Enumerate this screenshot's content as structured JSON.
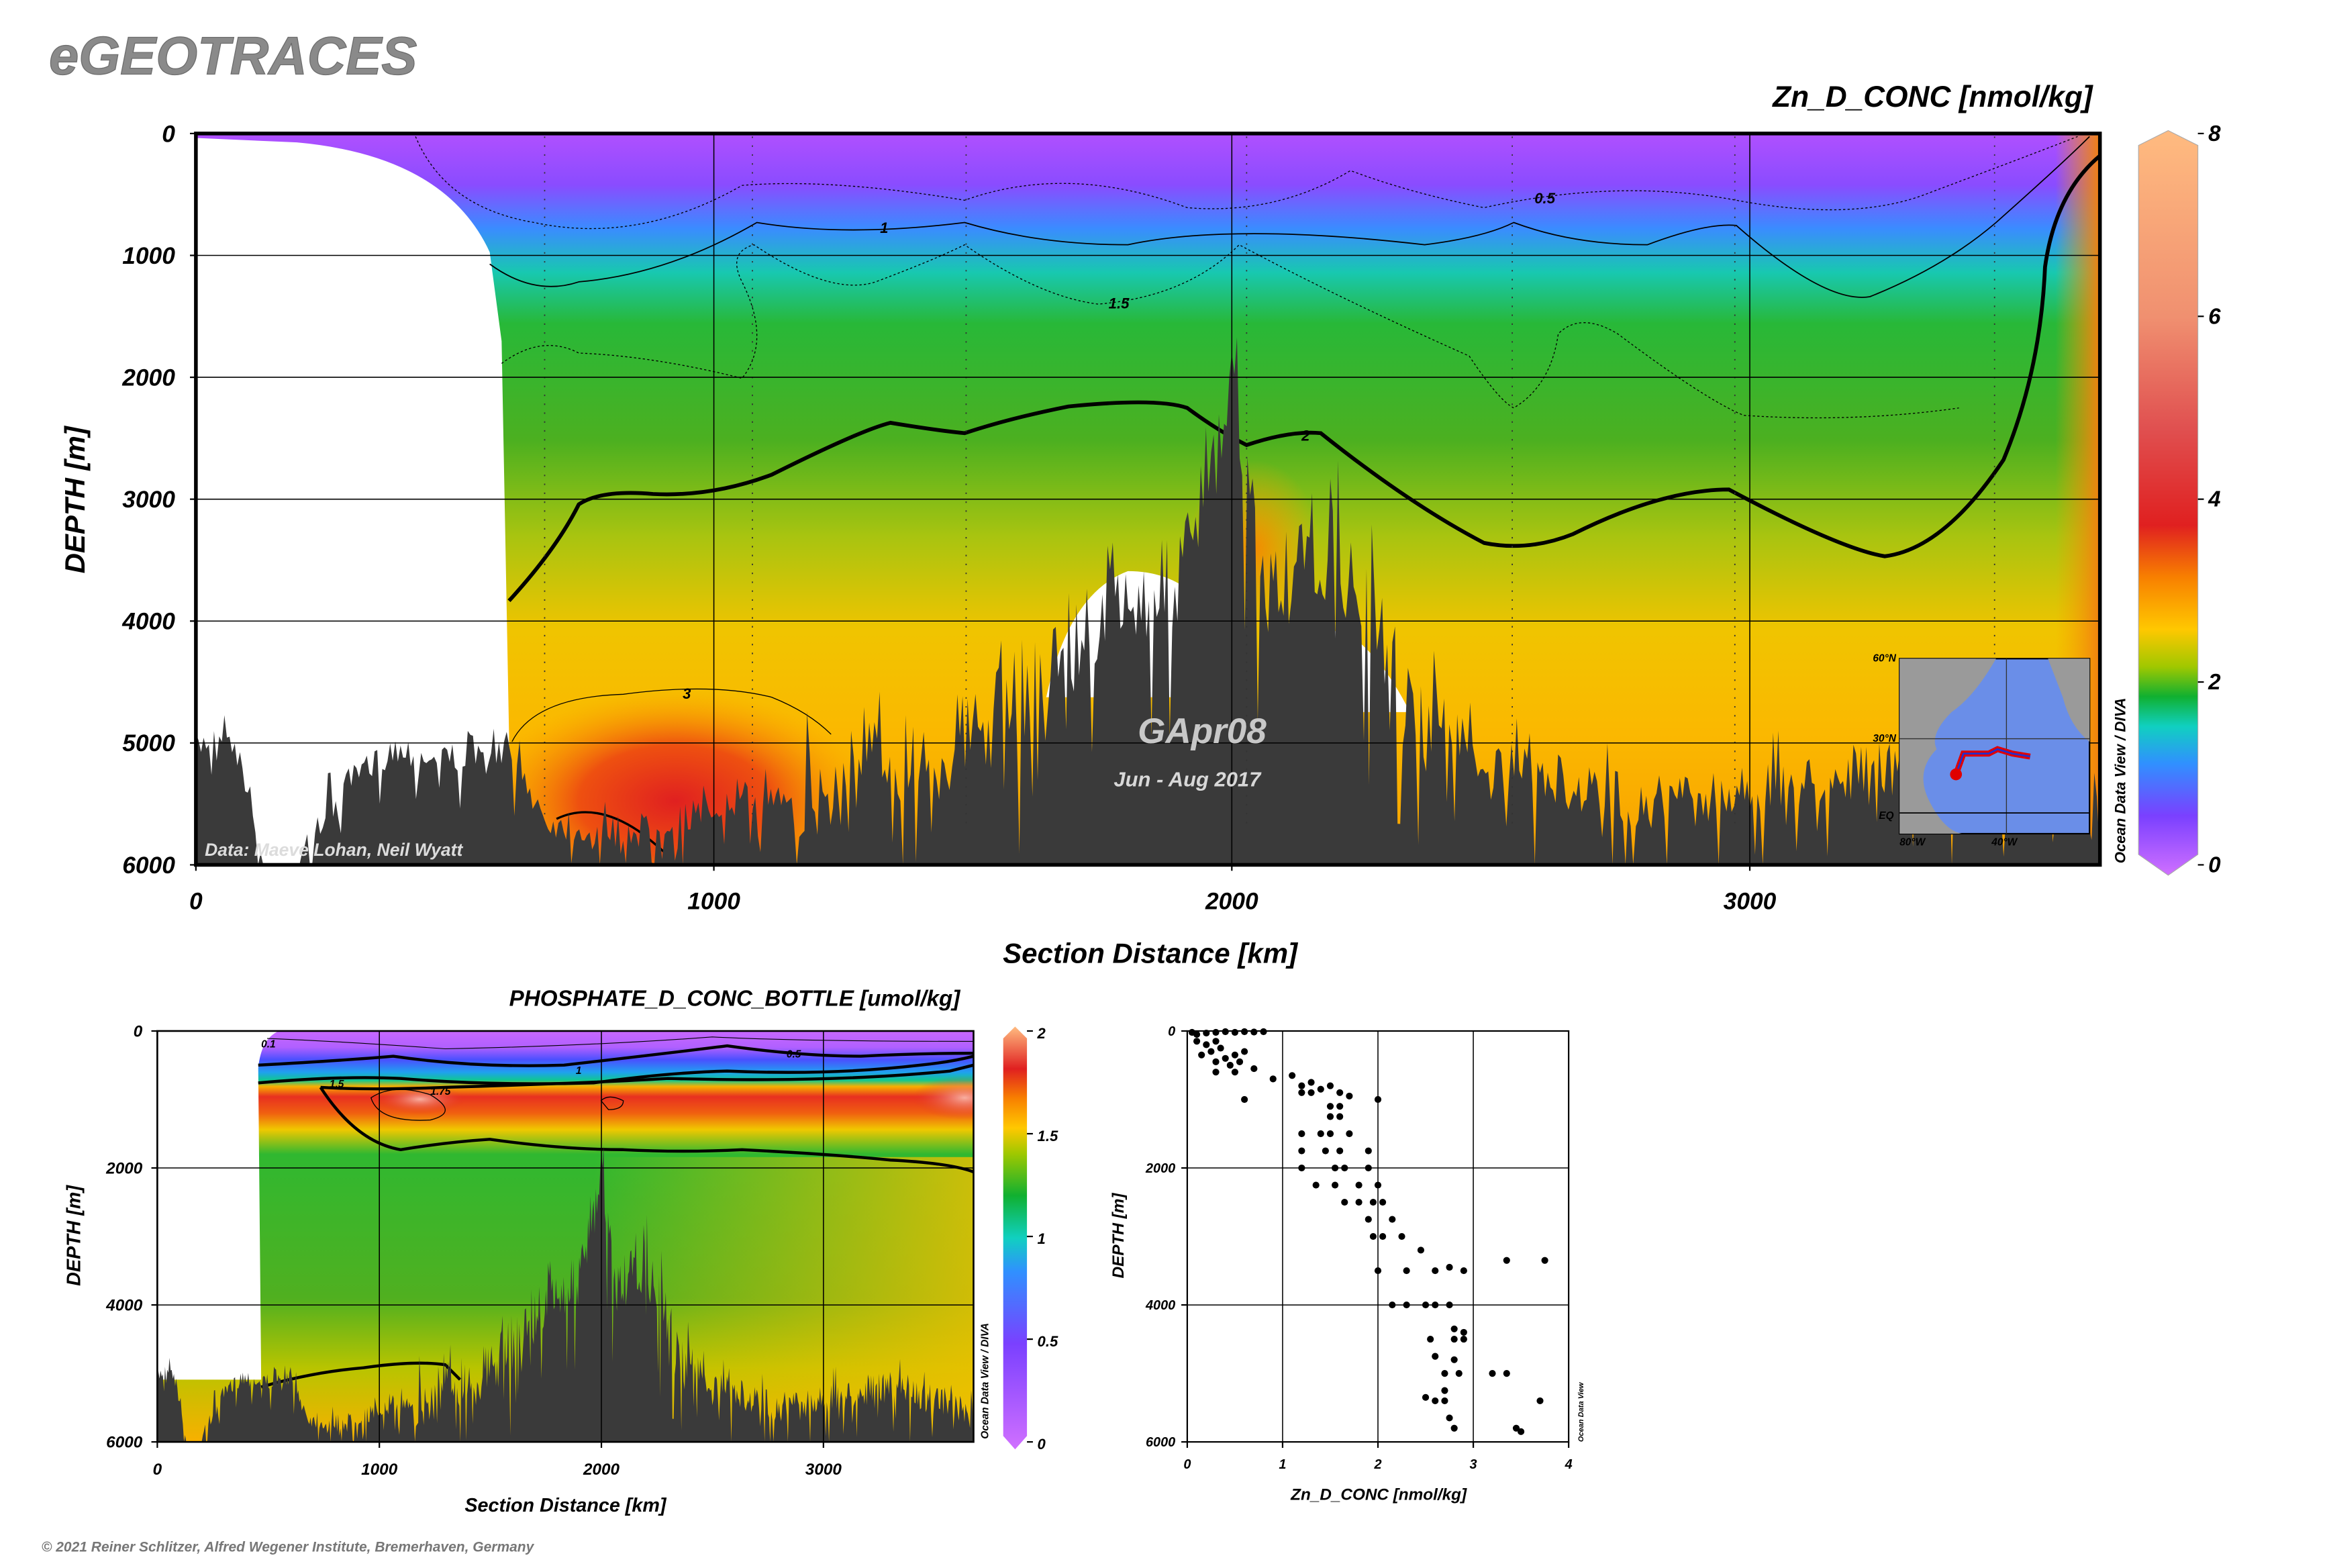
{
  "header": {
    "logo": "eGEOTRACES"
  },
  "footer": {
    "copyright": "© 2021 Reiner Schlitzer, Alfred Wegener Institute, Bremerhaven, Germany"
  },
  "main_plot": {
    "cruise": "GApr08",
    "dates": "Jun - Aug 2017",
    "credit": "Data: Maeve Lohan, Neil Wyatt",
    "watermark": "Ocean Data View / DIVA",
    "map_labels": {
      "lat60": "60°N",
      "lat30": "30°N",
      "eq": "EQ",
      "lon80": "80°W",
      "lon40": "40°W"
    },
    "accent_color": "#e00000"
  },
  "phosphate_plot": {
    "watermark": "Ocean Data View / DIVA"
  },
  "scatter_plot": {
    "watermark": "Ocean Data View"
  },
  "chart_data": [
    {
      "type": "heatmap",
      "title": "Zn_D_CONC [nmol/kg]",
      "xlabel": "Section Distance [km]",
      "ylabel": "DEPTH [m]",
      "xlim": [
        0,
        3676
      ],
      "ylim": [
        6000,
        0
      ],
      "xticks": [
        "0",
        "1000",
        "2000",
        "3000"
      ],
      "yticks": [
        "0",
        "1000",
        "2000",
        "3000",
        "4000",
        "5000",
        "6000"
      ],
      "colorbar": {
        "range": [
          0,
          8
        ],
        "ticks": [
          "0",
          "2",
          "4",
          "6",
          "8"
        ]
      },
      "contours": [
        {
          "level": "0.5"
        },
        {
          "level": "1"
        },
        {
          "level": "1.5"
        },
        {
          "level": "2"
        },
        {
          "level": "3"
        }
      ],
      "grid": true
    },
    {
      "type": "heatmap",
      "title": "PHOSPHATE_D_CONC_BOTTLE [umol/kg]",
      "xlabel": "Section Distance [km]",
      "ylabel": "DEPTH [m]",
      "xlim": [
        0,
        3676
      ],
      "ylim": [
        6000,
        0
      ],
      "xticks": [
        "0",
        "1000",
        "2000",
        "3000"
      ],
      "yticks": [
        "0",
        "2000",
        "4000",
        "6000"
      ],
      "colorbar": {
        "range": [
          0,
          2
        ],
        "ticks": [
          "0",
          "0.5",
          "1",
          "1.5",
          "2"
        ]
      },
      "contours": [
        {
          "level": "0.1"
        },
        {
          "level": "0.5"
        },
        {
          "level": "1"
        },
        {
          "level": "1.5"
        },
        {
          "level": "1.75"
        }
      ],
      "grid": true
    },
    {
      "type": "scatter",
      "xlabel": "Zn_D_CONC [nmol/kg]",
      "ylabel": "DEPTH [m]",
      "xlim": [
        0,
        4
      ],
      "ylim": [
        6000,
        0
      ],
      "xticks": [
        "0",
        "1",
        "2",
        "3",
        "4"
      ],
      "yticks": [
        "0",
        "2000",
        "4000",
        "6000"
      ],
      "points": [
        [
          0.05,
          20
        ],
        [
          0.1,
          50
        ],
        [
          0.2,
          30
        ],
        [
          0.3,
          20
        ],
        [
          0.4,
          10
        ],
        [
          0.5,
          20
        ],
        [
          0.6,
          10
        ],
        [
          0.7,
          15
        ],
        [
          0.8,
          10
        ],
        [
          0.1,
          150
        ],
        [
          0.2,
          200
        ],
        [
          0.3,
          150
        ],
        [
          0.25,
          300
        ],
        [
          0.35,
          250
        ],
        [
          0.15,
          350
        ],
        [
          0.4,
          400
        ],
        [
          0.5,
          350
        ],
        [
          0.3,
          450
        ],
        [
          0.6,
          300
        ],
        [
          0.45,
          500
        ],
        [
          0.55,
          450
        ],
        [
          0.3,
          600
        ],
        [
          0.5,
          600
        ],
        [
          0.7,
          550
        ],
        [
          0.9,
          700
        ],
        [
          1.1,
          650
        ],
        [
          1.2,
          800
        ],
        [
          1.3,
          750
        ],
        [
          1.4,
          850
        ],
        [
          1.5,
          800
        ],
        [
          1.2,
          900
        ],
        [
          1.3,
          900
        ],
        [
          1.6,
          900
        ],
        [
          1.7,
          950
        ],
        [
          2.0,
          1000
        ],
        [
          0.6,
          1000
        ],
        [
          1.5,
          1100
        ],
        [
          1.6,
          1100
        ],
        [
          1.5,
          1250
        ],
        [
          1.6,
          1250
        ],
        [
          1.2,
          1500
        ],
        [
          1.4,
          1500
        ],
        [
          1.5,
          1500
        ],
        [
          1.7,
          1500
        ],
        [
          1.2,
          1750
        ],
        [
          1.45,
          1750
        ],
        [
          1.6,
          1750
        ],
        [
          1.9,
          1750
        ],
        [
          1.2,
          2000
        ],
        [
          1.55,
          2000
        ],
        [
          1.65,
          2000
        ],
        [
          1.9,
          2000
        ],
        [
          1.35,
          2250
        ],
        [
          1.55,
          2250
        ],
        [
          1.8,
          2250
        ],
        [
          2.0,
          2250
        ],
        [
          1.65,
          2500
        ],
        [
          1.8,
          2500
        ],
        [
          1.95,
          2500
        ],
        [
          2.05,
          2500
        ],
        [
          1.9,
          2750
        ],
        [
          2.15,
          2750
        ],
        [
          1.95,
          3000
        ],
        [
          2.05,
          3000
        ],
        [
          2.25,
          3000
        ],
        [
          2.45,
          3200
        ],
        [
          3.35,
          3350
        ],
        [
          3.75,
          3350
        ],
        [
          2.0,
          3500
        ],
        [
          2.3,
          3500
        ],
        [
          2.6,
          3500
        ],
        [
          2.75,
          3450
        ],
        [
          2.9,
          3500
        ],
        [
          2.15,
          4000
        ],
        [
          2.3,
          4000
        ],
        [
          2.5,
          4000
        ],
        [
          2.6,
          4000
        ],
        [
          2.75,
          4000
        ],
        [
          2.8,
          4350
        ],
        [
          2.9,
          4400
        ],
        [
          2.55,
          4500
        ],
        [
          2.8,
          4500
        ],
        [
          2.9,
          4500
        ],
        [
          2.6,
          4750
        ],
        [
          2.8,
          4800
        ],
        [
          2.7,
          5000
        ],
        [
          2.85,
          5000
        ],
        [
          3.2,
          5000
        ],
        [
          3.35,
          5000
        ],
        [
          2.7,
          5250
        ],
        [
          2.5,
          5350
        ],
        [
          2.6,
          5400
        ],
        [
          2.7,
          5400
        ],
        [
          3.7,
          5400
        ],
        [
          2.75,
          5650
        ],
        [
          2.8,
          5800
        ],
        [
          3.45,
          5800
        ],
        [
          3.5,
          5850
        ]
      ]
    }
  ]
}
